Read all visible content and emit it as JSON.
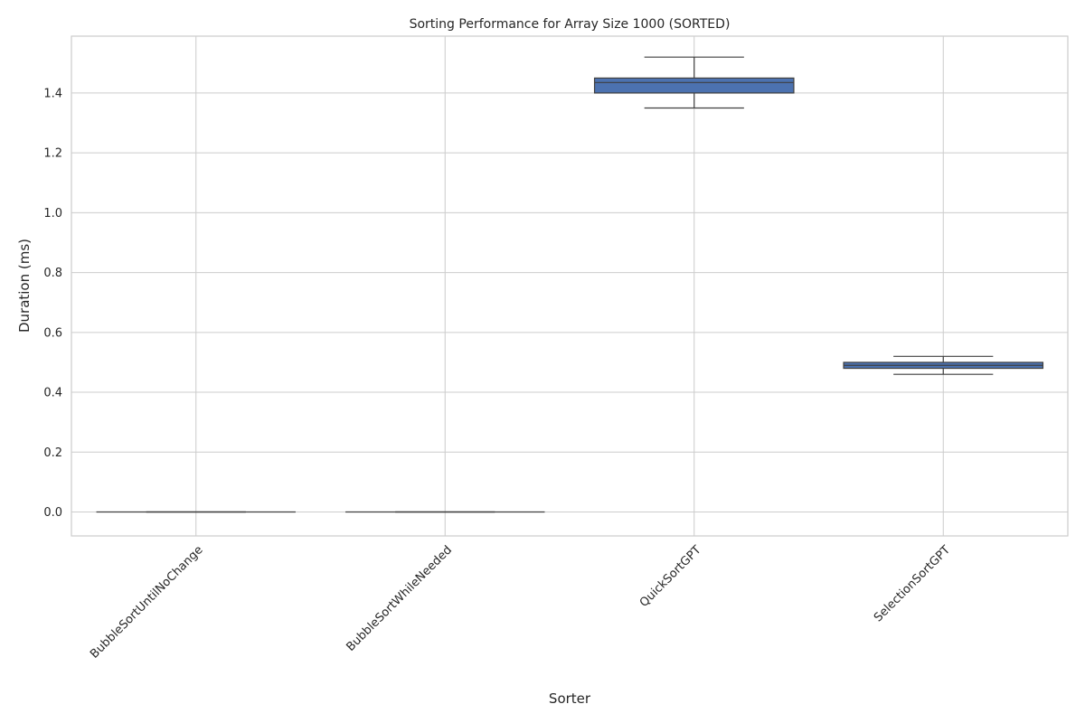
{
  "chart_data": {
    "type": "box",
    "title": "Sorting Performance for Array Size 1000 (SORTED)",
    "xlabel": "Sorter",
    "ylabel": "Duration (ms)",
    "ylim": [
      -0.08,
      1.59
    ],
    "yticks": [
      0.0,
      0.2,
      0.4,
      0.6,
      0.8,
      1.0,
      1.2,
      1.4
    ],
    "ytick_labels": [
      "0.0",
      "0.2",
      "0.4",
      "0.6",
      "0.8",
      "1.0",
      "1.2",
      "1.4"
    ],
    "grid": true,
    "box_color": "#4c72b0",
    "line_color": "#3f3f3f",
    "categories": [
      "BubbleSortUntilNoChange",
      "BubbleSortWhileNeeded",
      "QuickSortGPT",
      "SelectionSortGPT"
    ],
    "boxes": [
      {
        "category": "BubbleSortUntilNoChange",
        "whisker_low": 0.0,
        "q1": 0.0,
        "median": 0.0,
        "q3": 0.0,
        "whisker_high": 0.0
      },
      {
        "category": "BubbleSortWhileNeeded",
        "whisker_low": 0.0,
        "q1": 0.0,
        "median": 0.0,
        "q3": 0.0,
        "whisker_high": 0.0
      },
      {
        "category": "QuickSortGPT",
        "whisker_low": 1.35,
        "q1": 1.4,
        "median": 1.435,
        "q3": 1.45,
        "whisker_high": 1.52
      },
      {
        "category": "SelectionSortGPT",
        "whisker_low": 0.46,
        "q1": 0.48,
        "median": 0.49,
        "q3": 0.5,
        "whisker_high": 0.52
      }
    ]
  }
}
